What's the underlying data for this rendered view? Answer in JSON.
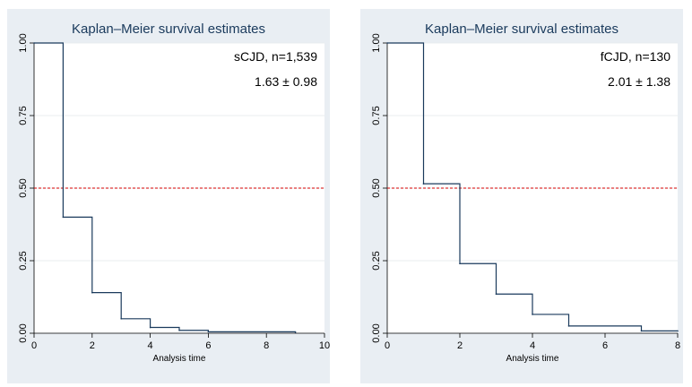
{
  "chart_data": [
    {
      "type": "line",
      "title": "Kaplan–Meier survival estimates",
      "xlabel": "Analysis time",
      "ylabel": "",
      "xlim": [
        0,
        10
      ],
      "ylim": [
        0,
        1
      ],
      "x_ticks": [
        0,
        2,
        4,
        6,
        8,
        10
      ],
      "y_ticks": [
        0.0,
        0.25,
        0.5,
        0.75,
        1.0
      ],
      "y_tick_labels": [
        "0.00",
        "0.25",
        "0.50",
        "0.75",
        "1.00"
      ],
      "grid": true,
      "step": true,
      "x": [
        0,
        1,
        2,
        3,
        4,
        5,
        6,
        9
      ],
      "y": [
        1.0,
        0.4,
        0.14,
        0.05,
        0.02,
        0.01,
        0.005,
        0.003
      ],
      "reference_line": {
        "y": 0.5,
        "color": "#d40000",
        "style": "dashed"
      },
      "annotations": [
        "sCJD, n=1,539",
        "1.63 ± 0.98"
      ],
      "line_color": "#1a3a5c"
    },
    {
      "type": "line",
      "title": "Kaplan–Meier survival estimates",
      "xlabel": "Analysis time",
      "ylabel": "",
      "xlim": [
        0,
        8
      ],
      "ylim": [
        0,
        1
      ],
      "x_ticks": [
        0,
        2,
        4,
        6,
        8
      ],
      "y_ticks": [
        0.0,
        0.25,
        0.5,
        0.75,
        1.0
      ],
      "y_tick_labels": [
        "0.00",
        "0.25",
        "0.50",
        "0.75",
        "1.00"
      ],
      "grid": true,
      "step": true,
      "x": [
        0,
        1,
        2,
        3,
        4,
        5,
        7,
        8
      ],
      "y": [
        1.0,
        0.515,
        0.24,
        0.135,
        0.065,
        0.025,
        0.008,
        0.008
      ],
      "reference_line": {
        "y": 0.5,
        "color": "#d40000",
        "style": "dashed"
      },
      "annotations": [
        "fCJD, n=130",
        "2.01 ± 1.38"
      ],
      "line_color": "#1a3a5c"
    }
  ]
}
